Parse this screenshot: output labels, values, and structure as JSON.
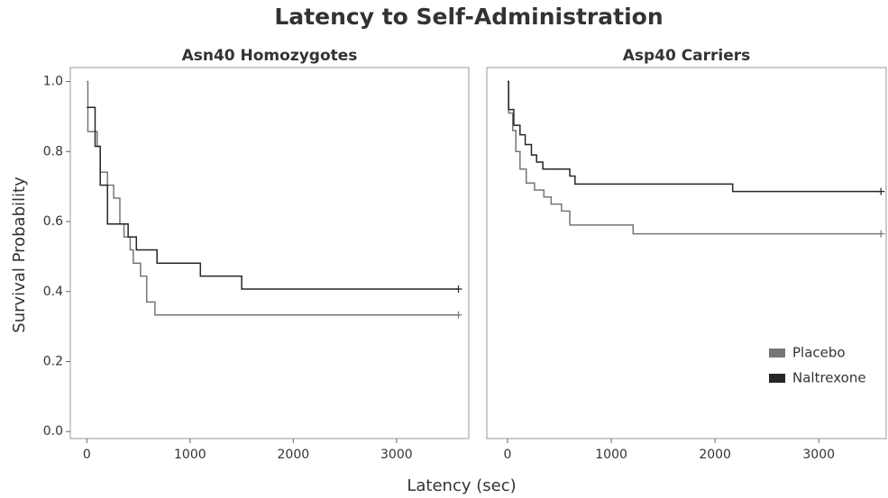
{
  "title": "Latency to Self-Administration",
  "xlabel": "Latency (sec)",
  "ylabel": "Survival Probability",
  "chart_data": [
    {
      "type": "step",
      "title": "Asn40 Homozygotes",
      "xlim": [
        -160,
        3700
      ],
      "ylim": [
        -0.02,
        1.04
      ],
      "xticks": [
        0,
        1000,
        2000,
        3000
      ],
      "yticks": [
        {
          "value": 0,
          "label": "0.0"
        },
        0.2,
        0.4,
        0.6,
        0.8,
        {
          "value": 1,
          "label": "1.0"
        }
      ],
      "series": [
        {
          "name": "Placebo",
          "color": "#767676",
          "x": [
            0,
            10,
            100,
            130,
            200,
            260,
            320,
            360,
            420,
            450,
            520,
            580,
            660,
            3600
          ],
          "values": [
            1.0,
            0.857,
            0.815,
            0.741,
            0.704,
            0.667,
            0.593,
            0.556,
            0.519,
            0.481,
            0.444,
            0.37,
            0.333,
            0.333
          ]
        },
        {
          "name": "Naltrexone",
          "color": "#262626",
          "x": [
            0,
            80,
            130,
            200,
            400,
            480,
            680,
            1100,
            1500,
            3600
          ],
          "values": [
            0.926,
            0.815,
            0.704,
            0.593,
            0.556,
            0.519,
            0.481,
            0.444,
            0.407,
            0.407
          ]
        }
      ]
    },
    {
      "type": "step",
      "title": "Asp40 Carriers",
      "xlim": [
        -200,
        3650
      ],
      "ylim": [
        -0.02,
        1.04
      ],
      "xticks": [
        0,
        1000,
        2000,
        3000
      ],
      "legend": "lower right",
      "series": [
        {
          "name": "Placebo",
          "color": "#767676",
          "x": [
            0,
            10,
            50,
            80,
            120,
            180,
            260,
            350,
            420,
            520,
            600,
            1210,
            3600
          ],
          "values": [
            1.0,
            0.91,
            0.86,
            0.8,
            0.75,
            0.71,
            0.69,
            0.67,
            0.65,
            0.63,
            0.59,
            0.565,
            0.565
          ]
        },
        {
          "name": "Naltrexone",
          "color": "#262626",
          "x": [
            0,
            10,
            60,
            120,
            170,
            230,
            280,
            340,
            600,
            650,
            2170,
            3600
          ],
          "values": [
            1.0,
            0.92,
            0.875,
            0.848,
            0.82,
            0.79,
            0.77,
            0.75,
            0.73,
            0.707,
            0.686,
            0.686
          ]
        }
      ]
    }
  ]
}
